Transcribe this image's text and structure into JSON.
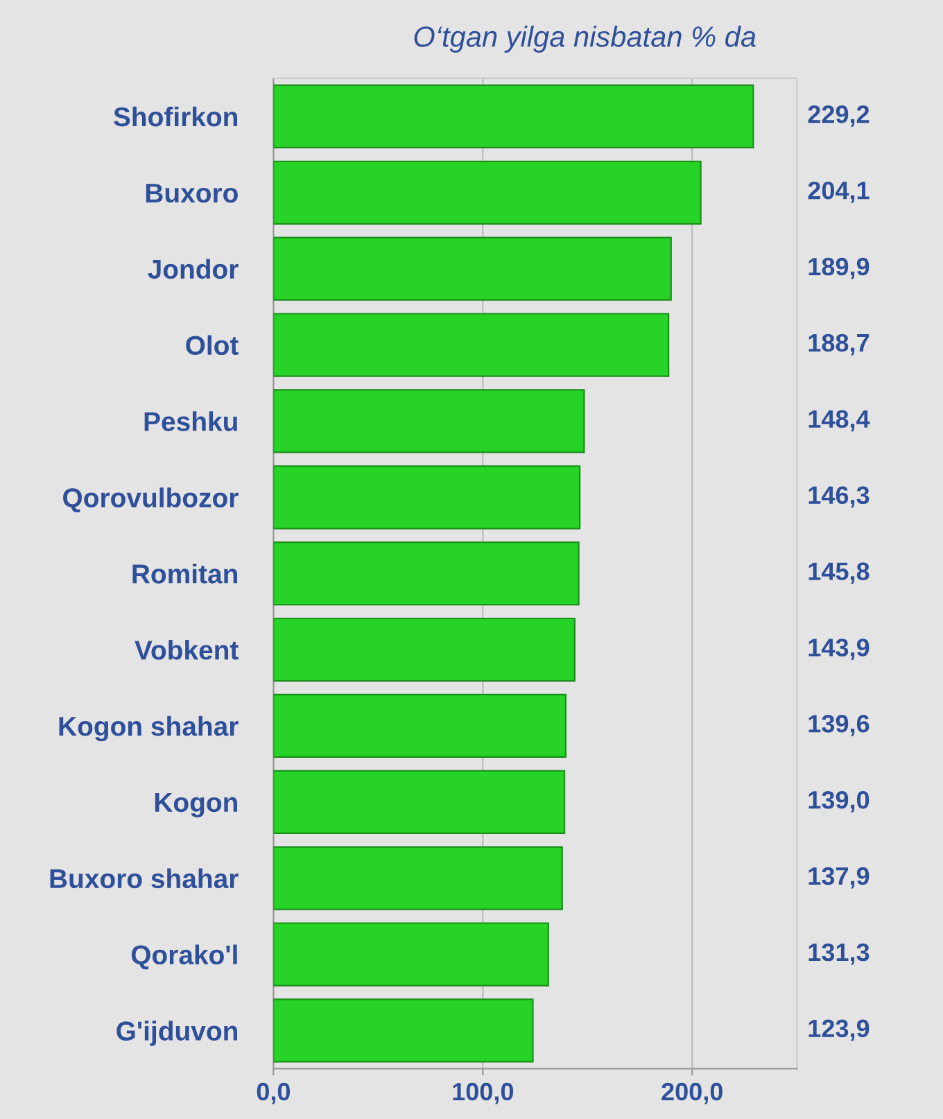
{
  "chart_data": {
    "type": "bar",
    "orientation": "horizontal",
    "title": "O‘tgan yilga nisbatan % da",
    "categories": [
      "Shofirkon",
      "Buxoro",
      "Jondor",
      "Olot",
      "Peshku",
      "Qorovulbozor",
      "Romitan",
      "Vobkent",
      "Kogon shahar",
      "Kogon",
      "Buxoro shahar",
      "Qorako'l",
      "G'ijduvon"
    ],
    "values": [
      229.2,
      204.1,
      189.9,
      188.7,
      148.4,
      146.3,
      145.8,
      143.9,
      139.6,
      139.0,
      137.9,
      131.3,
      123.9
    ],
    "value_labels": [
      "229,2",
      "204,1",
      "189,9",
      "188,7",
      "148,4",
      "146,3",
      "145,8",
      "143,9",
      "139,6",
      "139,0",
      "137,9",
      "131,3",
      "123,9"
    ],
    "color": "#27d327",
    "xlim": [
      0,
      250
    ],
    "xticks": [
      {
        "value": 0,
        "label": "0,0"
      },
      {
        "value": 100,
        "label": "100,0"
      },
      {
        "value": 200,
        "label": "200,0"
      }
    ],
    "grid": "x"
  }
}
